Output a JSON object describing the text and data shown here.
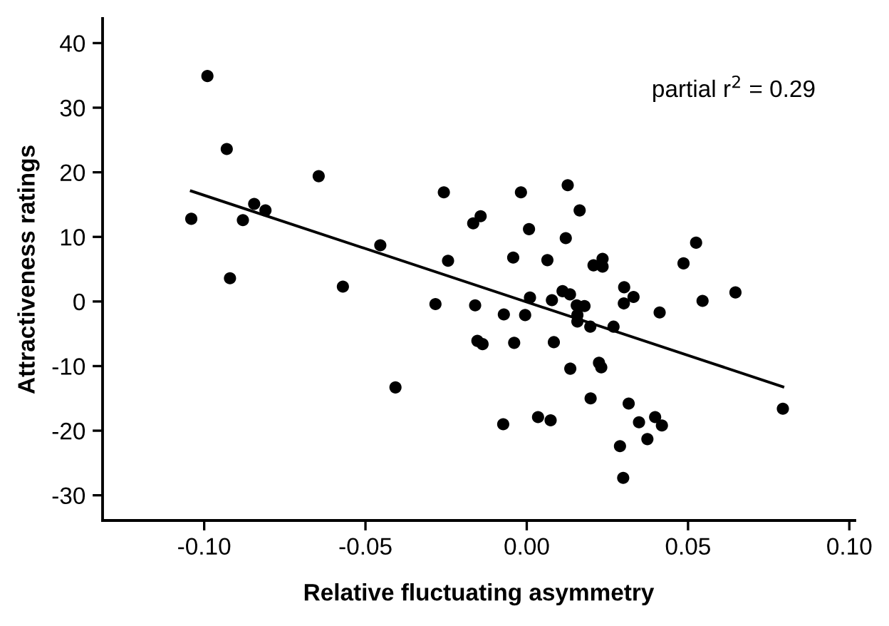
{
  "chart_data": {
    "type": "scatter",
    "xlabel": "Relative fluctuating asymmetry",
    "ylabel": "Attractiveness ratings",
    "annotations": [
      "partial r$^{2}$ = 0.29"
    ],
    "xlim": [
      -0.1315,
      0.1017
    ],
    "ylim": [
      -33.9,
      43.8
    ],
    "xticks": [
      {
        "value": -0.1,
        "label": "-0.10"
      },
      {
        "value": -0.05,
        "label": "-0.05"
      },
      {
        "value": 0,
        "label": "0.00"
      },
      {
        "value": 0.05,
        "label": "0.05"
      },
      {
        "value": 0.1,
        "label": "0.10"
      }
    ],
    "yticks": [
      -30,
      -20,
      -10,
      0,
      10,
      20,
      30,
      40
    ],
    "grid": false,
    "legend": false,
    "marker": "circle",
    "series": [
      {
        "color": "#000000",
        "x": [
          -0.104,
          -0.099,
          -0.093,
          -0.092,
          -0.088,
          -0.0845,
          -0.081,
          -0.0645,
          -0.057,
          -0.0454,
          -0.0407,
          -0.0283,
          -0.0257,
          -0.0244,
          -0.0166,
          -0.0143,
          -0.016,
          -0.0153,
          -0.0137,
          -0.0018,
          0.0127,
          0.0164,
          0.0007,
          0.0121,
          -0.0042,
          0.0064,
          0.0207,
          0.0235,
          0.0235,
          0.0486,
          0.0525,
          0.001,
          0.0078,
          0.0111,
          0.0134,
          0.0155,
          0.0179,
          0.0157,
          0.0157,
          0.0197,
          0.0269,
          0.0302,
          0.0301,
          0.0331,
          0.0412,
          0.0545,
          0.0647,
          -0.0071,
          -0.0005,
          -0.0039,
          0.0084,
          0.0135,
          0.0224,
          0.0231,
          0.0198,
          0.0316,
          0.0794,
          -0.0073,
          0.0035,
          0.0074,
          0.0348,
          0.0398,
          0.0419,
          0.0374,
          0.0289,
          0.0299
        ],
        "values": [
          12.8,
          34.9,
          23.6,
          3.6,
          12.6,
          15.1,
          14.1,
          19.4,
          2.3,
          8.7,
          -13.3,
          -0.4,
          16.9,
          6.3,
          12.1,
          13.2,
          -0.6,
          -6.1,
          -6.6,
          16.9,
          18.0,
          14.1,
          11.2,
          9.8,
          6.8,
          6.4,
          5.6,
          6.6,
          5.4,
          5.9,
          9.1,
          0.6,
          0.2,
          1.6,
          1.1,
          -0.6,
          -0.7,
          -2.1,
          -3.1,
          -3.9,
          -3.9,
          2.2,
          -0.3,
          0.7,
          -1.7,
          0.1,
          1.4,
          -2.0,
          -2.1,
          -6.4,
          -6.3,
          -10.4,
          -9.5,
          -10.2,
          -15.0,
          -15.8,
          -16.6,
          -19.0,
          -17.9,
          -18.4,
          -18.7,
          -17.9,
          -19.2,
          -21.3,
          -22.4,
          -27.3
        ]
      },
      {
        "type": "line",
        "color": "#000000",
        "marker": "none",
        "line_style": "solid",
        "x": [
          -0.104,
          0.0794
        ],
        "values": [
          17.1,
          -13.2
        ]
      }
    ]
  }
}
